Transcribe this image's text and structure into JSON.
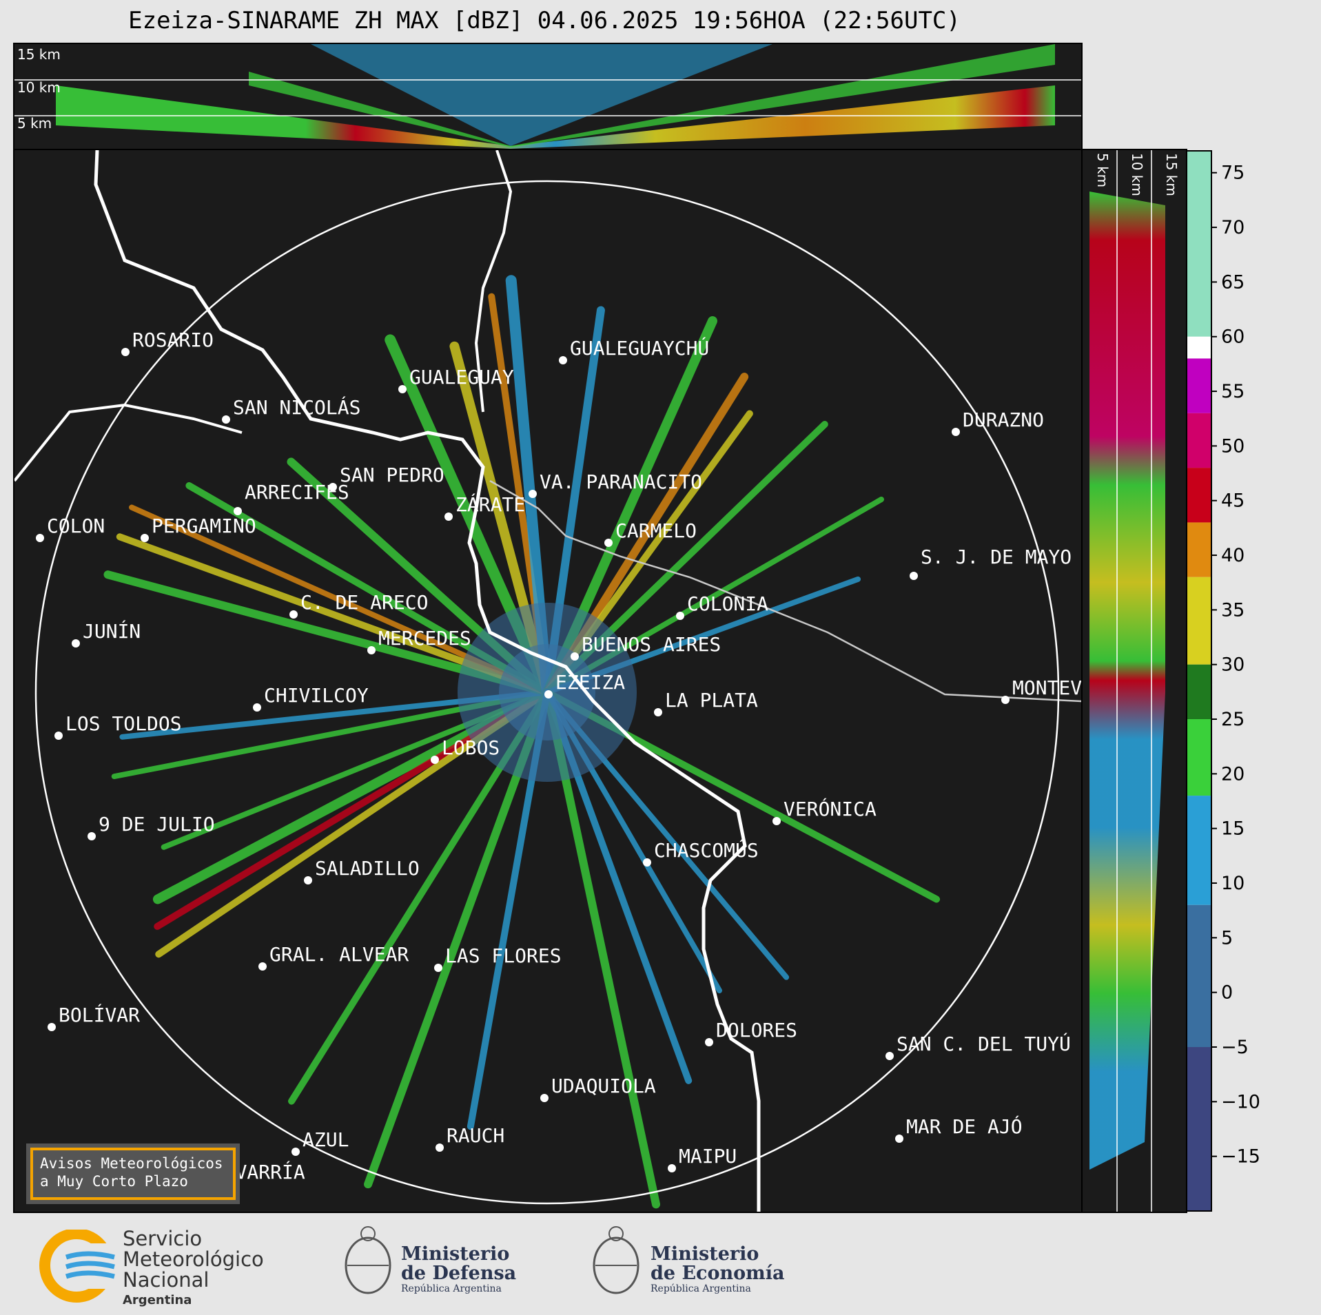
{
  "title": "Ezeiza-SINARAME ZH MAX [dBZ] 04.06.2025 19:56HOA (22:56UTC)",
  "height_labels": {
    "top": [
      "15 km",
      "10 km",
      "5 km"
    ],
    "side": [
      "5 km",
      "10 km",
      "15 km"
    ]
  },
  "cities": [
    {
      "name": "ROSARIO"
    },
    {
      "name": "GUALEGUAYCHÚ"
    },
    {
      "name": "GUALEGUAY"
    },
    {
      "name": "SAN NICOLÁS"
    },
    {
      "name": "DURAZNO"
    },
    {
      "name": "SAN PEDRO"
    },
    {
      "name": "VA. PARANACITO"
    },
    {
      "name": "COLON"
    },
    {
      "name": "PERGAMINO"
    },
    {
      "name": "CARMELO"
    },
    {
      "name": "ARRECIFES"
    },
    {
      "name": "ZÁRATE"
    },
    {
      "name": "C. DE ARECO"
    },
    {
      "name": "S. J. DE MAYO"
    },
    {
      "name": "COLONIA"
    },
    {
      "name": "JUNÍN"
    },
    {
      "name": "BUENOS AIRES"
    },
    {
      "name": "MERCEDES"
    },
    {
      "name": "EZEIZA"
    },
    {
      "name": "MONTEV"
    },
    {
      "name": "CHIVILCOY"
    },
    {
      "name": "LA PLATA"
    },
    {
      "name": "LOS TOLDOS"
    },
    {
      "name": "LOBOS"
    },
    {
      "name": "VERÓNICA"
    },
    {
      "name": "9 DE JULIO"
    },
    {
      "name": "CHASCOMÚS"
    },
    {
      "name": "SALADILLO"
    },
    {
      "name": "GRAL. ALVEAR"
    },
    {
      "name": "LAS FLORES"
    },
    {
      "name": "BOLÍVAR"
    },
    {
      "name": "DOLORES"
    },
    {
      "name": "SAN C. DEL TUYÚ"
    },
    {
      "name": "UDAQUIOLA"
    },
    {
      "name": "AZUL"
    },
    {
      "name": "RAUCH"
    },
    {
      "name": "MAR DE AJÓ"
    },
    {
      "name": "OLAVARRÍA"
    },
    {
      "name": "MAIPU"
    }
  ],
  "colorbar": {
    "unit": "dBZ",
    "ticks": [
      "75",
      "70",
      "65",
      "60",
      "55",
      "50",
      "45",
      "40",
      "35",
      "30",
      "25",
      "20",
      "15",
      "10",
      "5",
      "0",
      "−5",
      "−10",
      "−15"
    ],
    "range": [
      -20,
      77
    ],
    "bands": [
      {
        "from": 60,
        "to": 77,
        "color": "#8fdfbf"
      },
      {
        "from": 58,
        "to": 60,
        "color": "#ffffff"
      },
      {
        "from": 53,
        "to": 58,
        "color": "#c000c0"
      },
      {
        "from": 48,
        "to": 53,
        "color": "#d0006a"
      },
      {
        "from": 43,
        "to": 48,
        "color": "#c8001a"
      },
      {
        "from": 38,
        "to": 43,
        "color": "#e08a10"
      },
      {
        "from": 30,
        "to": 38,
        "color": "#d8d020"
      },
      {
        "from": 25,
        "to": 30,
        "color": "#1f7a1f"
      },
      {
        "from": 18,
        "to": 25,
        "color": "#3ad03a"
      },
      {
        "from": 8,
        "to": 18,
        "color": "#2a9fd6"
      },
      {
        "from": -5,
        "to": 8,
        "color": "#3a6fa0"
      },
      {
        "from": -20,
        "to": -5,
        "color": "#3d4680"
      }
    ]
  },
  "alert_box": {
    "line1": "Avisos Meteorológicos",
    "line2": "a Muy Corto Plazo"
  },
  "footer": {
    "smn": {
      "line1": "Servicio",
      "line2": "Meteorológico",
      "line3": "Nacional",
      "line4": "Argentina"
    },
    "defensa": {
      "line1": "Ministerio",
      "line2": "de Defensa",
      "line3": "República Argentina"
    },
    "economia": {
      "line1": "Ministerio",
      "line2": "de Economía",
      "line3": "República Argentina"
    }
  },
  "colors": {
    "background": "#1b1b1b",
    "coast": "#ffffff",
    "borders": "#8a8a8a",
    "accent_alert": "#f5a400"
  }
}
